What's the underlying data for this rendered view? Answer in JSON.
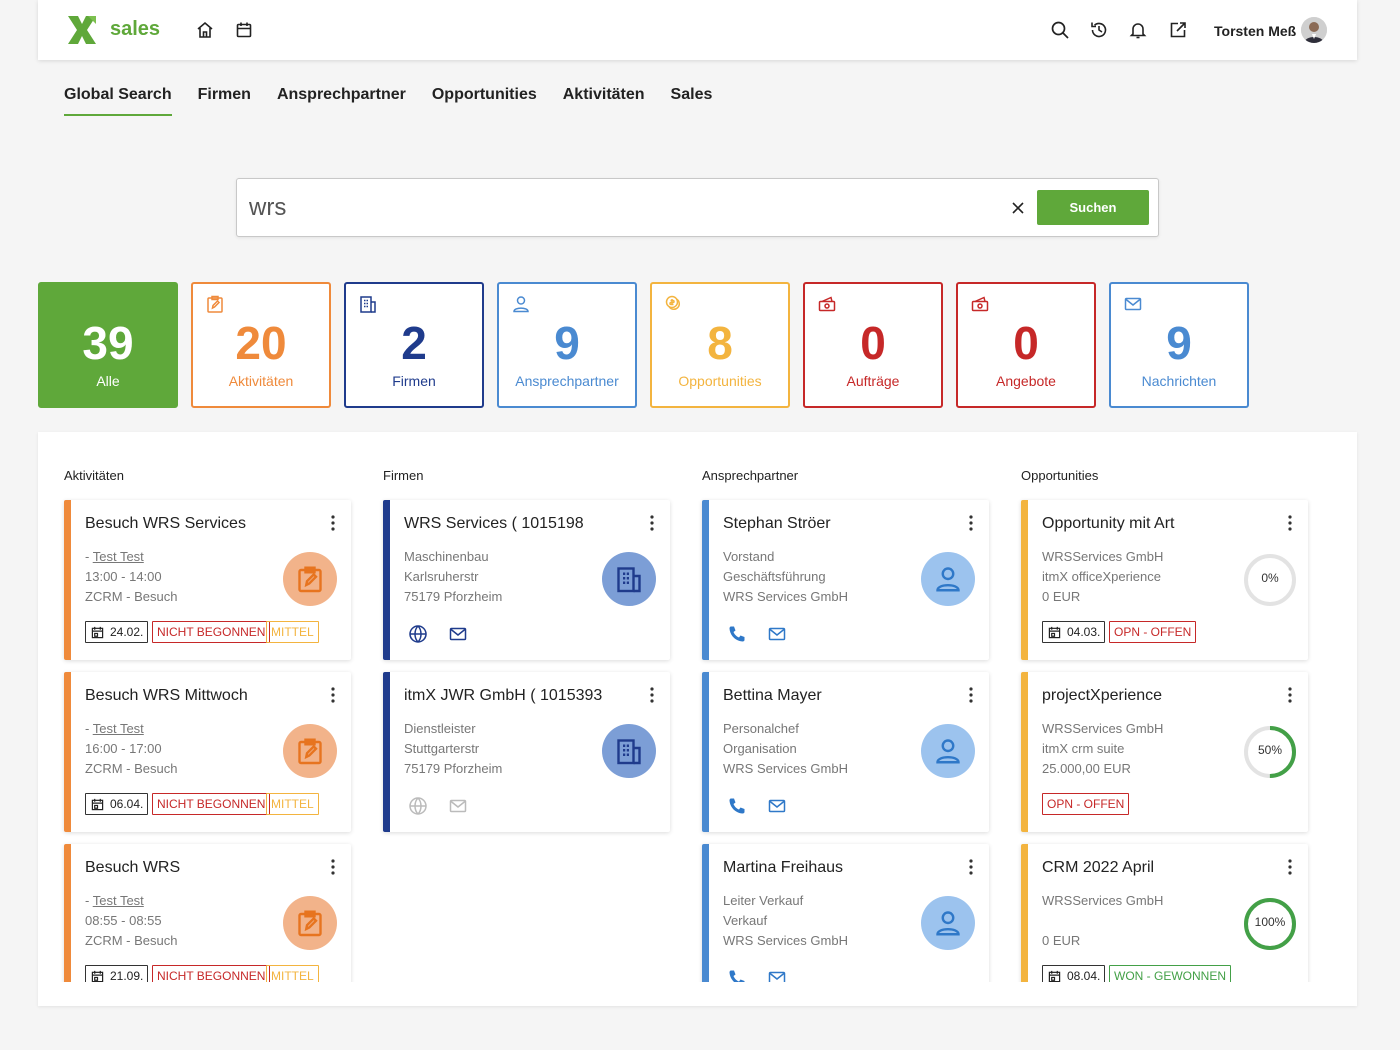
{
  "app": {
    "name": "sales",
    "user": "Torsten Meß"
  },
  "colors": {
    "green": "#5fa83a",
    "orange": "#ef8a3b",
    "navy": "#1f3b8c",
    "blue": "#4a8ad1",
    "yellow": "#f3b43f",
    "red": "#c62828"
  },
  "topbar_icons": [
    "home-icon",
    "calendar-icon",
    "search-icon",
    "history-icon",
    "bell-icon",
    "external-link-icon"
  ],
  "nav": {
    "tabs": [
      "Global Search",
      "Firmen",
      "Ansprechpartner",
      "Opportunities",
      "Aktivitäten",
      "Sales"
    ],
    "active": "Global Search"
  },
  "search": {
    "value": "wrs",
    "button": "Suchen"
  },
  "tiles": [
    {
      "count": "39",
      "label": "Alle"
    },
    {
      "count": "20",
      "label": "Aktivitäten"
    },
    {
      "count": "2",
      "label": "Firmen"
    },
    {
      "count": "9",
      "label": "Ansprechpartner"
    },
    {
      "count": "8",
      "label": "Opportunities"
    },
    {
      "count": "0",
      "label": "Aufträge"
    },
    {
      "count": "0",
      "label": "Angebote"
    },
    {
      "count": "9",
      "label": "Nachrichten"
    }
  ],
  "columns": {
    "aktivitaeten": {
      "title": "Aktivitäten",
      "cards": [
        {
          "title": "Besuch WRS Services",
          "contact": "Test Test",
          "time": "13:00 - 14:00",
          "type": "ZCRM - Besuch",
          "date": "24.02.",
          "status": "NICHT BEGONNEN",
          "priority": "MITTEL"
        },
        {
          "title": "Besuch WRS Mittwoch",
          "contact": "Test Test",
          "time": "16:00 - 17:00",
          "type": "ZCRM - Besuch",
          "date": "06.04.",
          "status": "NICHT BEGONNEN",
          "priority": "MITTEL"
        },
        {
          "title": "Besuch WRS",
          "contact": "Test Test",
          "time": "08:55 - 08:55",
          "type": "ZCRM - Besuch",
          "date": "21.09.",
          "status": "NICHT BEGONNEN",
          "priority": "MITTEL"
        }
      ]
    },
    "firmen": {
      "title": "Firmen",
      "cards": [
        {
          "title": "WRS Services ( 1015198",
          "industry": "Maschinenbau",
          "street": "Karlsruherstr",
          "city": "75179 Pforzheim"
        },
        {
          "title": "itmX JWR GmbH ( 1015393",
          "industry": "Dienstleister",
          "street": "Stuttgarterstr",
          "city": "75179 Pforzheim"
        }
      ]
    },
    "ansprechpartner": {
      "title": "Ansprechpartner",
      "cards": [
        {
          "name": "Stephan Ströer",
          "role": "Vorstand",
          "dept": "Geschäftsführung",
          "company": "WRS Services GmbH"
        },
        {
          "name": "Bettina Mayer",
          "role": "Personalchef",
          "dept": "Organisation",
          "company": "WRS Services GmbH"
        },
        {
          "name": "Martina Freihaus",
          "role": "Leiter Verkauf",
          "dept": "Verkauf",
          "company": "WRS Services GmbH"
        }
      ]
    },
    "opportunities": {
      "title": "Opportunities",
      "cards": [
        {
          "title": "Opportunity mit Art",
          "company": "WRSServices GmbH",
          "product": "itmX officeXperience",
          "amount": "0 EUR",
          "progress": 0,
          "progress_label": "0%",
          "date": "04.03.",
          "status": "OPN - OFFEN"
        },
        {
          "title": "projectXperience",
          "company": "WRSServices GmbH",
          "product": "itmX crm suite",
          "amount": "25.000,00 EUR",
          "progress": 50,
          "progress_label": "50%",
          "status": "OPN - OFFEN"
        },
        {
          "title": "CRM 2022 April",
          "company": "WRSServices GmbH",
          "product": "",
          "amount": "0 EUR",
          "progress": 100,
          "progress_label": "100%",
          "date": "08.04.",
          "status": "WON - GEWONNEN"
        }
      ]
    }
  }
}
